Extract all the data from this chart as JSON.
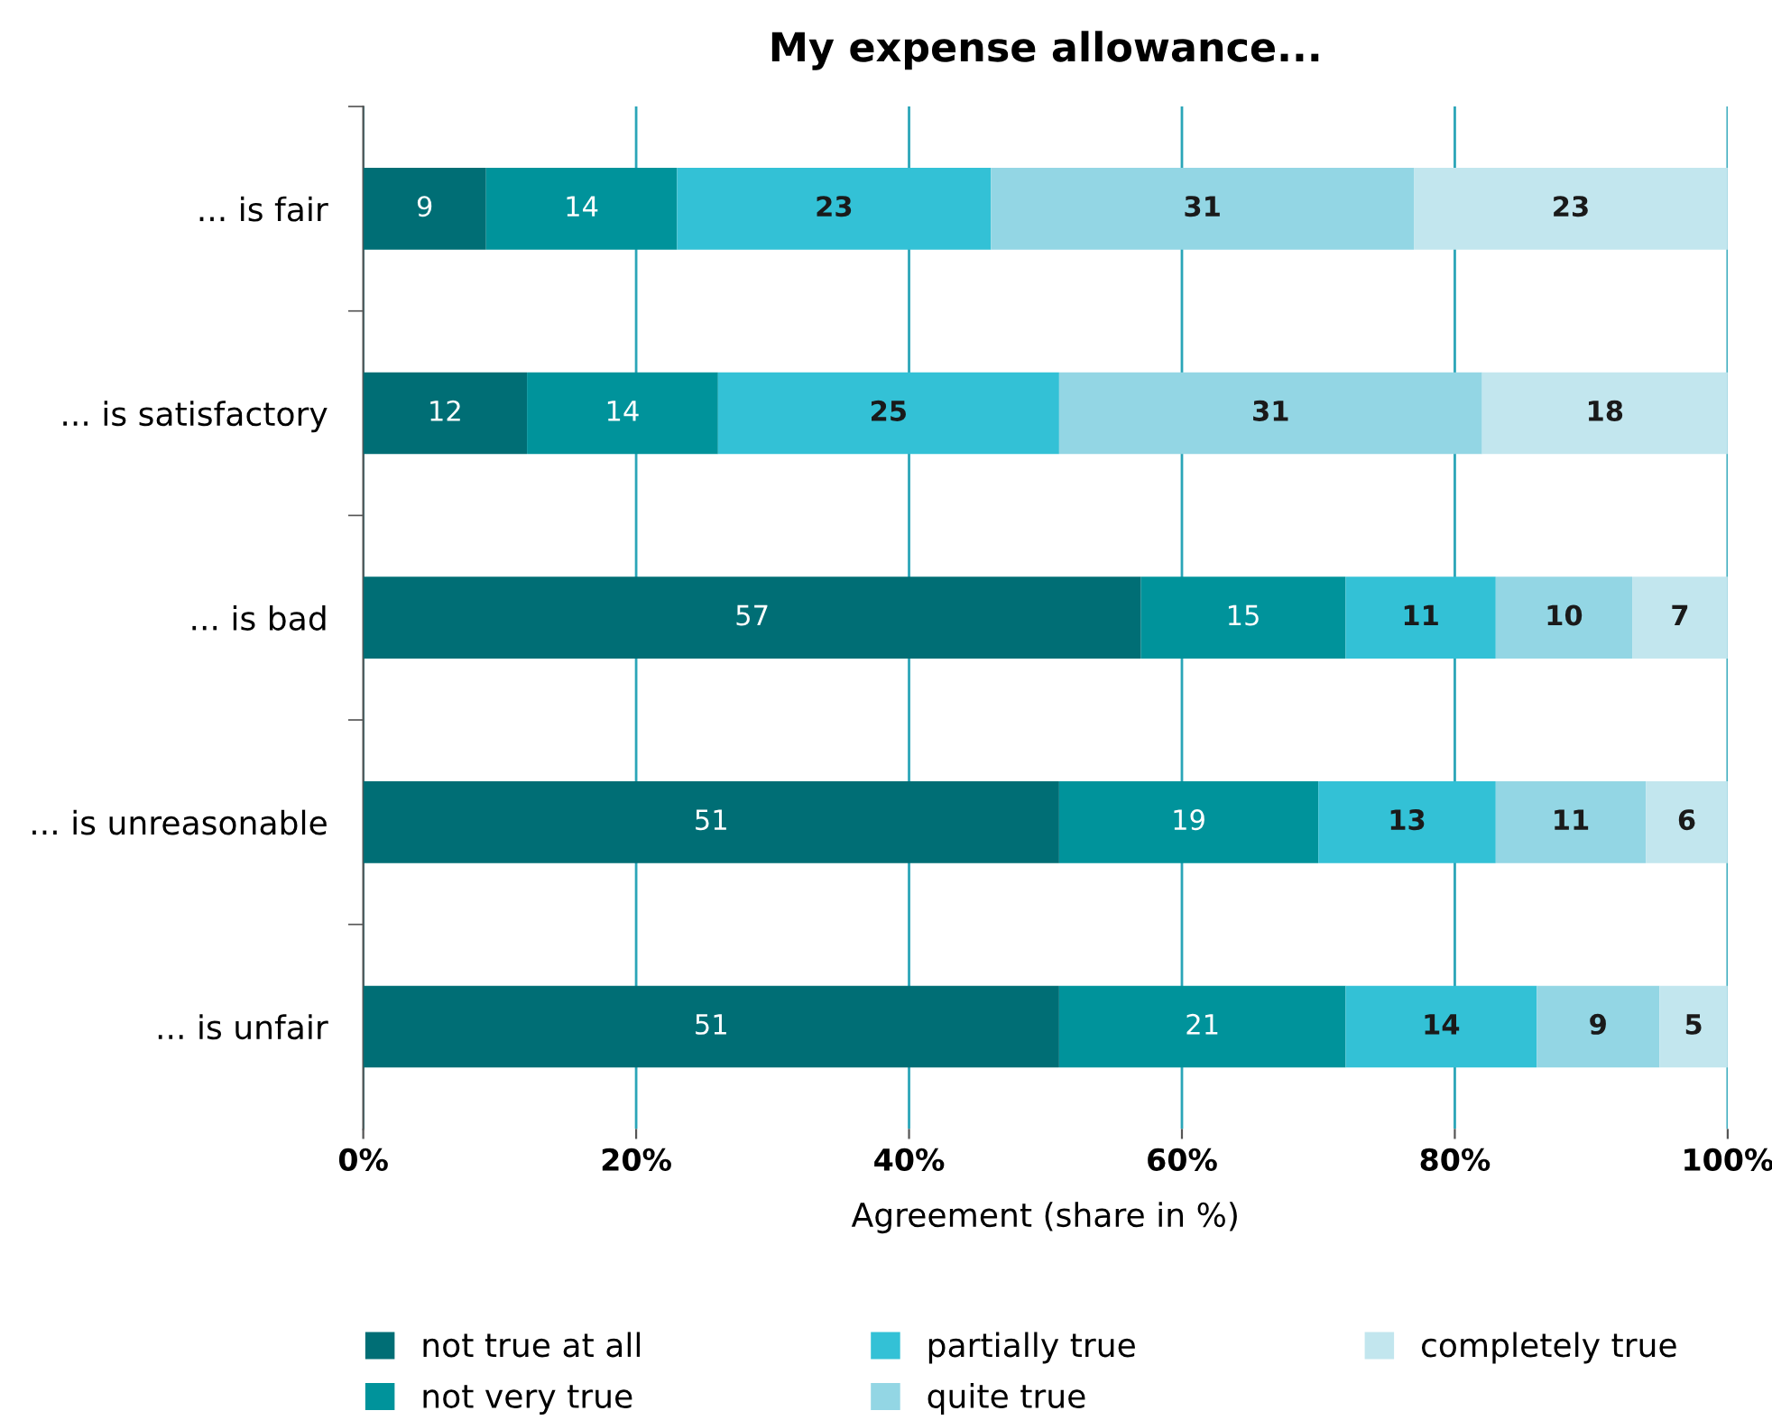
{
  "chart_data": {
    "type": "bar",
    "orientation": "horizontal",
    "stacked": true,
    "title": "My expense allowance...",
    "xlabel": "Agreement (share in %)",
    "categories": [
      "... is fair",
      "... is satisfactory",
      "... is bad",
      "... is unreasonable",
      "... is unfair"
    ],
    "series": [
      {
        "name": "not true at all",
        "color": "#006e75",
        "values": [
          9,
          12,
          57,
          51,
          51
        ]
      },
      {
        "name": "not very true",
        "color": "#00939b",
        "values": [
          14,
          14,
          15,
          19,
          21
        ]
      },
      {
        "name": "partially true",
        "color": "#33c1d6",
        "values": [
          23,
          25,
          11,
          13,
          14
        ]
      },
      {
        "name": "quite true",
        "color": "#93d6e4",
        "values": [
          31,
          31,
          10,
          11,
          9
        ]
      },
      {
        "name": "completely true",
        "color": "#c2e6ee",
        "values": [
          23,
          18,
          7,
          6,
          5
        ]
      }
    ],
    "xlim": [
      0,
      100
    ],
    "xticks": [
      {
        "value": 0,
        "label": "0%"
      },
      {
        "value": 20,
        "label": "20%"
      },
      {
        "value": 40,
        "label": "40%"
      },
      {
        "value": 60,
        "label": "60%"
      },
      {
        "value": 80,
        "label": "80%"
      },
      {
        "value": 100,
        "label": "100%"
      }
    ],
    "grid": "x",
    "legend": "bottom",
    "data_labels": true
  }
}
